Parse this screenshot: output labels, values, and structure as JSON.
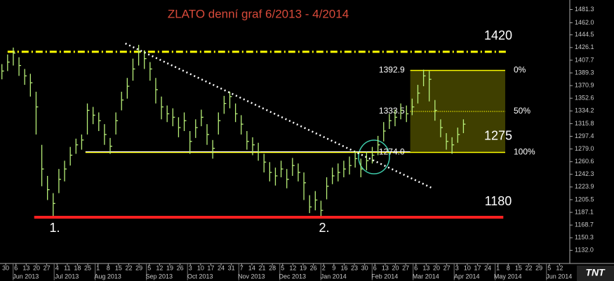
{
  "chart_data": {
    "type": "ohlc",
    "title": "ZLATO denní graf 6/2013 - 4/2014",
    "color": "#b8f078",
    "x": [
      1,
      4,
      7,
      10,
      13,
      16,
      19,
      22,
      25,
      28,
      31,
      34,
      37,
      40,
      43,
      46,
      49,
      52,
      55,
      58,
      61,
      64,
      67,
      70,
      73,
      76,
      79,
      82,
      85,
      88,
      91,
      94,
      97,
      100,
      103,
      106,
      109,
      112,
      115,
      118,
      121,
      124,
      127,
      130,
      133,
      136,
      139,
      142,
      145,
      148,
      151,
      154,
      157,
      160,
      163,
      166,
      169,
      172,
      175,
      178,
      181,
      184,
      187,
      190,
      193,
      196,
      199,
      202,
      205,
      208,
      211,
      214,
      217,
      220,
      223,
      226,
      229,
      232,
      235,
      238,
      241,
      244
    ],
    "high": [
      1402,
      1416,
      1426,
      1412,
      1395,
      1388,
      1362,
      1285,
      1240,
      1215,
      1250,
      1262,
      1282,
      1294,
      1300,
      1345,
      1340,
      1332,
      1315,
      1295,
      1332,
      1362,
      1382,
      1410,
      1430,
      1422,
      1405,
      1382,
      1355,
      1342,
      1338,
      1325,
      1332,
      1305,
      1322,
      1336,
      1315,
      1292,
      1332,
      1356,
      1362,
      1345,
      1328,
      1305,
      1296,
      1288,
      1272,
      1260,
      1252,
      1262,
      1250,
      1266,
      1258,
      1245,
      1212,
      1218,
      1204,
      1238,
      1252,
      1258,
      1262,
      1268,
      1276,
      1265,
      1275,
      1282,
      1298,
      1318,
      1330,
      1336,
      1345,
      1342,
      1352,
      1372,
      1394,
      1392,
      1350,
      1322,
      1302,
      1296,
      1310,
      1322
    ],
    "low": [
      1380,
      1392,
      1400,
      1385,
      1372,
      1355,
      1300,
      1225,
      1205,
      1182,
      1215,
      1232,
      1255,
      1272,
      1278,
      1300,
      1315,
      1305,
      1285,
      1272,
      1300,
      1335,
      1352,
      1378,
      1400,
      1395,
      1378,
      1345,
      1322,
      1318,
      1312,
      1296,
      1305,
      1272,
      1295,
      1312,
      1285,
      1265,
      1300,
      1330,
      1338,
      1318,
      1300,
      1278,
      1270,
      1262,
      1245,
      1232,
      1226,
      1238,
      1222,
      1240,
      1232,
      1205,
      1186,
      1190,
      1182,
      1206,
      1228,
      1232,
      1238,
      1242,
      1252,
      1238,
      1248,
      1258,
      1270,
      1290,
      1308,
      1312,
      1322,
      1318,
      1328,
      1345,
      1370,
      1348,
      1320,
      1296,
      1278,
      1272,
      1288,
      1302
    ],
    "close": [
      1392,
      1405,
      1418,
      1400,
      1385,
      1375,
      1340,
      1250,
      1220,
      1200,
      1235,
      1250,
      1270,
      1285,
      1292,
      1335,
      1328,
      1320,
      1300,
      1283,
      1320,
      1350,
      1370,
      1395,
      1420,
      1410,
      1395,
      1365,
      1340,
      1330,
      1325,
      1310,
      1320,
      1290,
      1310,
      1325,
      1300,
      1280,
      1320,
      1345,
      1355,
      1330,
      1315,
      1290,
      1285,
      1275,
      1260,
      1245,
      1240,
      1250,
      1235,
      1255,
      1245,
      1230,
      1195,
      1205,
      1190,
      1225,
      1240,
      1245,
      1250,
      1255,
      1265,
      1250,
      1262,
      1270,
      1285,
      1305,
      1320,
      1325,
      1335,
      1330,
      1340,
      1360,
      1385,
      1380,
      1335,
      1310,
      1290,
      1285,
      1300,
      1315
    ],
    "xlim": [
      0,
      300
    ],
    "ylim": [
      1113,
      1495
    ],
    "yticks": [
      1481.3,
      {
        "value": 1462,
        "label": "1462.0"
      },
      1444.5,
      1426.1,
      1407.7,
      1389.3,
      1370.9,
      1352.6,
      1334.2,
      1315.8,
      1297.4,
      {
        "value": 1279,
        "label": "1279.0"
      },
      1260.6,
      1242.3,
      1223.9,
      1205.5,
      1187.1,
      1168.7,
      1150.3,
      {
        "value": 1132,
        "label": "1132.0"
      }
    ],
    "xticks": [
      {
        "value": 3,
        "label": "30"
      },
      {
        "value": 8.4,
        "label": "6"
      },
      {
        "value": 13.8,
        "label": "13"
      },
      {
        "value": 19.2,
        "label": "20"
      },
      {
        "value": 24.6,
        "label": "27"
      },
      {
        "value": 30,
        "label": "4"
      },
      {
        "value": 35.4,
        "label": "11"
      },
      {
        "value": 40.8,
        "label": "18"
      },
      {
        "value": 46.2,
        "label": "25"
      },
      {
        "value": 51.6,
        "label": "1"
      },
      {
        "value": 57,
        "label": "8"
      },
      {
        "value": 62.4,
        "label": "15"
      },
      {
        "value": 67.8,
        "label": "22"
      },
      {
        "value": 73.2,
        "label": "29"
      },
      {
        "value": 78.6,
        "label": "5"
      },
      {
        "value": 84,
        "label": "12"
      },
      {
        "value": 89.4,
        "label": "19"
      },
      {
        "value": 94.8,
        "label": "26"
      },
      {
        "value": 100.2,
        "label": "3"
      },
      {
        "value": 105.6,
        "label": "10"
      },
      {
        "value": 111,
        "label": "17"
      },
      {
        "value": 116.4,
        "label": "24"
      },
      {
        "value": 121.8,
        "label": "31"
      },
      {
        "value": 127.2,
        "label": "7"
      },
      {
        "value": 132.6,
        "label": "14"
      },
      {
        "value": 138,
        "label": "21"
      },
      {
        "value": 143.4,
        "label": "28"
      },
      {
        "value": 148.8,
        "label": "5"
      },
      {
        "value": 154.2,
        "label": "12"
      },
      {
        "value": 159.6,
        "label": "19"
      },
      {
        "value": 165,
        "label": "26"
      },
      {
        "value": 170.4,
        "label": "2"
      },
      {
        "value": 175.8,
        "label": "9"
      },
      {
        "value": 181.2,
        "label": "16"
      },
      {
        "value": 186.6,
        "label": "23"
      },
      {
        "value": 192,
        "label": "30"
      },
      {
        "value": 197.4,
        "label": "6"
      },
      {
        "value": 202.8,
        "label": "13"
      },
      {
        "value": 208.2,
        "label": "20"
      },
      {
        "value": 213.6,
        "label": "27"
      },
      {
        "value": 219,
        "label": "6"
      },
      {
        "value": 224.4,
        "label": "13"
      },
      {
        "value": 229.8,
        "label": "20"
      },
      {
        "value": 235.2,
        "label": "27"
      },
      {
        "value": 240.6,
        "label": "3"
      },
      {
        "value": 246,
        "label": "10"
      },
      {
        "value": 251.4,
        "label": "17"
      },
      {
        "value": 256.8,
        "label": "24"
      },
      {
        "value": 262.2,
        "label": "1"
      },
      {
        "value": 267.6,
        "label": "8"
      },
      {
        "value": 273,
        "label": "15"
      },
      {
        "value": 278.4,
        "label": "22"
      },
      {
        "value": 283.8,
        "label": "29"
      },
      {
        "value": 289.2,
        "label": "5"
      },
      {
        "value": 294.6,
        "label": "12"
      }
    ],
    "months": [
      {
        "value": 8.4,
        "label": "Jun 2013"
      },
      {
        "value": 30,
        "label": "Jul 2013"
      },
      {
        "value": 51.6,
        "label": "Aug 2013"
      },
      {
        "value": 78.6,
        "label": "Sep 2013"
      },
      {
        "value": 100.2,
        "label": "Oct 2013"
      },
      {
        "value": 127.2,
        "label": "Nov 2013"
      },
      {
        "value": 148.8,
        "label": "Dec 2013"
      },
      {
        "value": 170.4,
        "label": "Jan 2014"
      },
      {
        "value": 197.4,
        "label": "Feb 2014"
      },
      {
        "value": 219,
        "label": "Mar 2014"
      },
      {
        "value": 240.6,
        "label": "Apr 2014"
      },
      {
        "value": 262.2,
        "label": "May 2014"
      },
      {
        "value": 289.2,
        "label": "Jun 2014"
      }
    ],
    "levels": [
      {
        "value": 1420,
        "x": [
          4,
          267
        ],
        "color": "#ffff00",
        "style": "dashdot"
      },
      {
        "value": 1275,
        "x": [
          45,
          216
        ],
        "color": "#ffffff",
        "style": "solid"
      },
      {
        "value": 1180,
        "x": [
          18,
          265
        ],
        "color": "#ff2020",
        "style": "thick"
      }
    ],
    "trendline": {
      "x": [
        66,
        227
      ],
      "y": [
        1432,
        1223
      ],
      "color": "#ffffff"
    },
    "fib": {
      "x": [
        216,
        266
      ],
      "levels": [
        1392.9,
        1333.5,
        {
          "value": 1274,
          "label": "1274.0"
        }
      ],
      "ratios": [
        {
          "value": 0,
          "label": "0%"
        },
        {
          "value": 50,
          "label": "50%"
        },
        {
          "value": 100,
          "label": "100%"
        }
      ],
      "color": "#ffff00"
    },
    "markers": [
      "1.",
      "2."
    ],
    "logo": "TNT"
  }
}
